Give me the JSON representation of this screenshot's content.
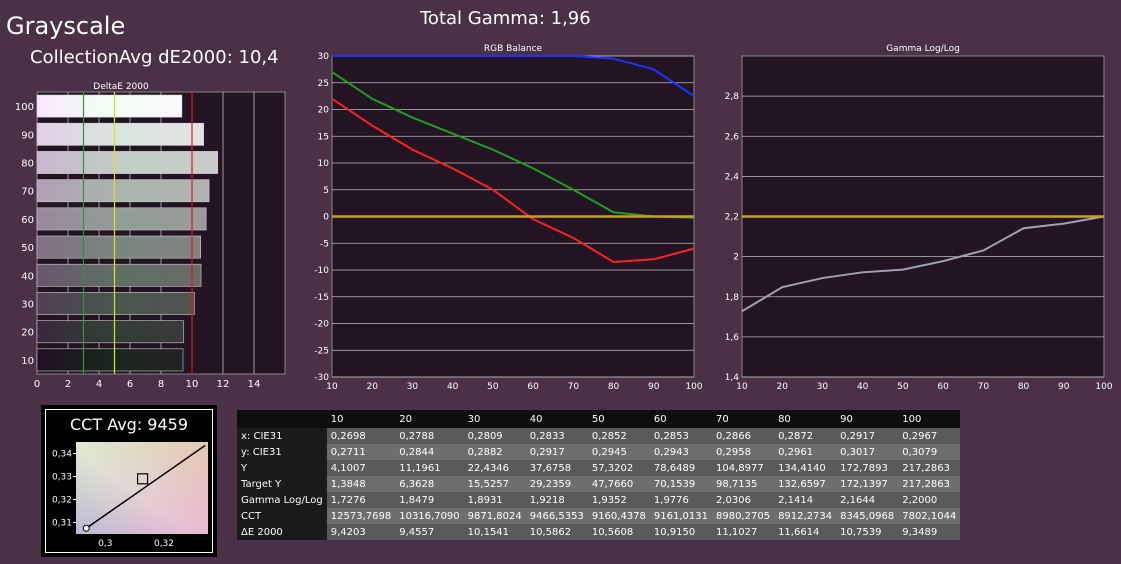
{
  "header": {
    "title": "Grayscale",
    "total_gamma": "Total Gamma: 1,96",
    "avg_de": "CollectionAvg dE2000: 10,4"
  },
  "cct": {
    "title": "CCT Avg: 9459",
    "y_ticks": [
      "0,34",
      "0,33",
      "0,32",
      "0,31"
    ],
    "x_ticks": [
      "0,3",
      "0,32"
    ]
  },
  "colors": {
    "background": "#4a3148",
    "plot_bg": "#221422",
    "red": "#ff2020",
    "green": "#20a020",
    "blue": "#2030ff",
    "target": "#c8a020",
    "gamma_line": "#a0a0b0"
  },
  "chart_data": [
    {
      "type": "bar",
      "title": "DeltaE 2000",
      "categories": [
        "100",
        "90",
        "80",
        "70",
        "60",
        "50",
        "40",
        "30",
        "20",
        "10"
      ],
      "values": [
        9.3489,
        10.7539,
        11.6614,
        11.1027,
        10.915,
        10.5608,
        10.5862,
        10.1541,
        9.4557,
        9.4203
      ],
      "xlim": [
        0,
        16
      ],
      "x_ticks": [
        "0",
        "2",
        "4",
        "6",
        "8",
        "10",
        "12",
        "14"
      ],
      "reference_lines": [
        {
          "value": 3,
          "color": "#2a9a2a"
        },
        {
          "value": 5,
          "color": "#e0e020"
        },
        {
          "value": 10,
          "color": "#d02020"
        }
      ]
    },
    {
      "type": "line",
      "title": "RGB Balance",
      "x": [
        10,
        20,
        30,
        40,
        50,
        60,
        70,
        80,
        90,
        100
      ],
      "ylim": [
        -30,
        30
      ],
      "y_ticks": [
        "30",
        "25",
        "20",
        "15",
        "10",
        "5",
        "0",
        "-5",
        "-10",
        "-15",
        "-20",
        "-25",
        "-30"
      ],
      "x_ticks": [
        "10",
        "20",
        "30",
        "40",
        "50",
        "60",
        "70",
        "80",
        "90",
        "100"
      ],
      "series": [
        {
          "color": "red",
          "values": [
            22,
            17,
            12.5,
            9,
            5,
            -0.5,
            -4,
            -8.5,
            -8,
            -6
          ]
        },
        {
          "color": "green",
          "values": [
            27,
            22,
            18.5,
            15.5,
            12.5,
            9,
            5,
            0.8,
            0,
            -0.2
          ]
        },
        {
          "color": "blue",
          "values": [
            30,
            30,
            30,
            30,
            30,
            30,
            30,
            29.5,
            27.5,
            22.5
          ]
        },
        {
          "color": "target",
          "values": [
            0,
            0,
            0,
            0,
            0,
            0,
            0,
            0,
            0,
            0
          ]
        }
      ]
    },
    {
      "type": "line",
      "title": "Gamma Log/Log",
      "x": [
        10,
        20,
        30,
        40,
        50,
        60,
        70,
        80,
        90,
        100
      ],
      "ylim": [
        1.4,
        3.0
      ],
      "y_ticks": [
        "2,8",
        "2,6",
        "2,4",
        "2,2",
        "2",
        "1,8",
        "1,6",
        "1,4"
      ],
      "x_ticks": [
        "10",
        "20",
        "30",
        "40",
        "50",
        "60",
        "70",
        "80",
        "90",
        "100"
      ],
      "series": [
        {
          "color": "gamma",
          "values": [
            1.7276,
            1.8479,
            1.8931,
            1.9218,
            1.9352,
            1.9776,
            2.0306,
            2.1414,
            2.1644,
            2.2
          ]
        },
        {
          "color": "target",
          "values": [
            2.2,
            2.2,
            2.2,
            2.2,
            2.2,
            2.2,
            2.2,
            2.2,
            2.2,
            2.2
          ]
        }
      ]
    },
    {
      "type": "table",
      "columns": [
        "",
        "10",
        "20",
        "30",
        "40",
        "50",
        "60",
        "70",
        "80",
        "90",
        "100"
      ],
      "rows": [
        [
          "x: CIE31",
          "0,2698",
          "0,2788",
          "0,2809",
          "0,2833",
          "0,2852",
          "0,2853",
          "0,2866",
          "0,2872",
          "0,2917",
          "0,2967"
        ],
        [
          "y: CIE31",
          "0,2711",
          "0,2844",
          "0,2882",
          "0,2917",
          "0,2945",
          "0,2943",
          "0,2958",
          "0,2961",
          "0,3017",
          "0,3079"
        ],
        [
          "Y",
          "4,1007",
          "11,1961",
          "22,4346",
          "37,6758",
          "57,3202",
          "78,6489",
          "104,8977",
          "134,4140",
          "172,7893",
          "217,2863"
        ],
        [
          "Target Y",
          "1,3848",
          "6,3628",
          "15,5257",
          "29,2359",
          "47,7660",
          "70,1539",
          "98,7135",
          "132,6597",
          "172,1397",
          "217,2863"
        ],
        [
          "Gamma Log/Log",
          "1,7276",
          "1,8479",
          "1,8931",
          "1,9218",
          "1,9352",
          "1,9776",
          "2,0306",
          "2,1414",
          "2,1644",
          "2,2000"
        ],
        [
          "CCT",
          "12573,7698",
          "10316,7090",
          "9871,8024",
          "9466,5353",
          "9160,4378",
          "9161,0131",
          "8980,2705",
          "8912,2734",
          "8345,0968",
          "7802,1044"
        ],
        [
          "ΔE 2000",
          "9,4203",
          "9,4557",
          "10,1541",
          "10,5862",
          "10,5608",
          "10,9150",
          "11,1027",
          "11,6614",
          "10,7539",
          "9,3489"
        ]
      ]
    }
  ]
}
